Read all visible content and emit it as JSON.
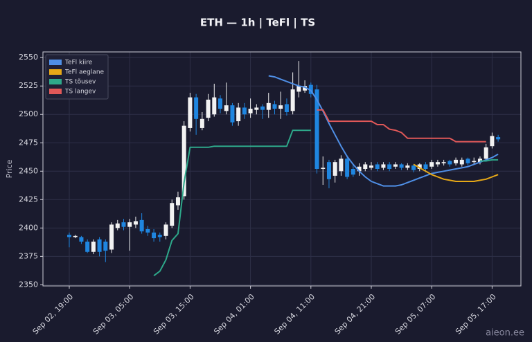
{
  "chart_data": {
    "type": "candlestick",
    "title": "ETH — 1h  |  TeFl  |  TS",
    "y_label": "Price",
    "watermark": "aieon.ee",
    "categories": [
      "Sep 02, 19:00",
      null,
      null,
      null,
      null,
      null,
      null,
      null,
      null,
      null,
      "Sep 03, 05:00",
      null,
      null,
      null,
      null,
      null,
      null,
      null,
      null,
      null,
      "Sep 03, 15:00",
      null,
      null,
      null,
      null,
      null,
      null,
      null,
      null,
      null,
      "Sep 04, 01:00",
      null,
      null,
      null,
      null,
      null,
      null,
      null,
      null,
      null,
      "Sep 04, 11:00",
      null,
      null,
      null,
      null,
      null,
      null,
      null,
      null,
      null,
      "Sep 04, 21:00",
      null,
      null,
      null,
      null,
      null,
      null,
      null,
      null,
      null,
      "Sep 05, 07:00",
      null,
      null,
      null,
      null,
      null,
      null,
      null,
      null,
      null,
      "Sep 05, 17:00",
      null
    ],
    "open": [
      2394,
      2392,
      2392,
      2388,
      2379,
      2390,
      2388,
      2381,
      2400,
      2405,
      2401,
      2403,
      2407,
      2399,
      2396,
      2394,
      2393,
      2402,
      2420,
      2428,
      2488,
      2515,
      2488,
      2497,
      2500,
      2514,
      2503,
      2508,
      2494,
      2506,
      2501,
      2504,
      2507,
      2504,
      2509,
      2505,
      2509,
      2503,
      2520,
      2521,
      2526,
      2522,
      2452,
      2458,
      2446,
      2450,
      2461,
      2452,
      2450,
      2452,
      2453,
      2456,
      2453,
      2456,
      2454,
      2456,
      2453,
      2455,
      2452,
      2456,
      2454,
      2456,
      2457,
      2459,
      2457,
      2456,
      2461,
      2458,
      2458,
      2461,
      2472,
      2480
    ],
    "high": [
      2396,
      2394,
      2393,
      2390,
      2390,
      2392,
      2390,
      2405,
      2407,
      2408,
      2408,
      2410,
      2413,
      2402,
      2399,
      2396,
      2405,
      2425,
      2432,
      2494,
      2519,
      2518,
      2502,
      2518,
      2527,
      2517,
      2528,
      2510,
      2510,
      2510,
      2514,
      2509,
      2509,
      2519,
      2512,
      2520,
      2514,
      2537,
      2547,
      2530,
      2528,
      2526,
      2463,
      2460,
      2460,
      2464,
      2464,
      2455,
      2457,
      2458,
      2458,
      2458,
      2458,
      2458,
      2458,
      2457,
      2457,
      2456,
      2457,
      2458,
      2460,
      2460,
      2460,
      2460,
      2462,
      2462,
      2462,
      2462,
      2463,
      2474,
      2484,
      2482
    ],
    "low": [
      2383,
      2391,
      2386,
      2378,
      2377,
      2375,
      2370,
      2378,
      2398,
      2398,
      2380,
      2400,
      2395,
      2393,
      2388,
      2388,
      2390,
      2400,
      2416,
      2425,
      2485,
      2482,
      2486,
      2494,
      2498,
      2501,
      2500,
      2490,
      2490,
      2496,
      2497,
      2500,
      2496,
      2497,
      2500,
      2496,
      2499,
      2500,
      2515,
      2519,
      2515,
      2448,
      2438,
      2435,
      2440,
      2446,
      2443,
      2445,
      2446,
      2450,
      2451,
      2450,
      2451,
      2450,
      2452,
      2451,
      2451,
      2449,
      2450,
      2449,
      2452,
      2454,
      2455,
      2454,
      2455,
      2454,
      2455,
      2456,
      2456,
      2459,
      2470,
      2476
    ],
    "close": [
      2392,
      2393,
      2388,
      2379,
      2388,
      2379,
      2380,
      2403,
      2404,
      2401,
      2405,
      2406,
      2397,
      2396,
      2391,
      2392,
      2403,
      2422,
      2427,
      2490,
      2515,
      2496,
      2496,
      2513,
      2515,
      2505,
      2508,
      2493,
      2506,
      2500,
      2505,
      2506,
      2504,
      2510,
      2505,
      2508,
      2502,
      2522,
      2525,
      2525,
      2518,
      2452,
      2453,
      2443,
      2458,
      2461,
      2445,
      2447,
      2454,
      2456,
      2455,
      2452,
      2456,
      2452,
      2456,
      2453,
      2455,
      2451,
      2456,
      2452,
      2458,
      2458,
      2458,
      2456,
      2460,
      2460,
      2457,
      2459,
      2461,
      2471,
      2481,
      2478
    ],
    "up_color": "#f2f2f2",
    "down_color": "#1f86e0",
    "series": [
      {
        "name": "TeFl kiire",
        "color": "#4f8fe6",
        "values": [
          null,
          null,
          null,
          null,
          null,
          null,
          null,
          null,
          null,
          null,
          null,
          null,
          null,
          null,
          null,
          null,
          null,
          null,
          null,
          null,
          null,
          null,
          null,
          null,
          null,
          null,
          null,
          null,
          null,
          null,
          null,
          null,
          null,
          2534,
          2533,
          2531,
          2529,
          2527,
          2525,
          2524,
          2521,
          2513,
          2503,
          2492,
          2482,
          2472,
          2463,
          2456,
          2450,
          2445,
          2441,
          2439,
          2437,
          2437,
          2437,
          2438,
          2440,
          2442,
          2444,
          2446,
          2448,
          2449,
          2450,
          2451,
          2452,
          2453,
          2454,
          2456,
          2458,
          2460,
          2462,
          2465
        ]
      },
      {
        "name": "TeFl aeglane",
        "color": "#e6a817",
        "values": [
          null,
          null,
          null,
          null,
          null,
          null,
          null,
          null,
          null,
          null,
          null,
          null,
          null,
          null,
          null,
          null,
          null,
          null,
          null,
          null,
          null,
          null,
          null,
          null,
          null,
          null,
          null,
          null,
          null,
          null,
          null,
          null,
          null,
          null,
          null,
          null,
          null,
          null,
          null,
          null,
          null,
          null,
          null,
          null,
          null,
          null,
          null,
          null,
          null,
          null,
          null,
          null,
          null,
          null,
          null,
          null,
          null,
          2456,
          2453,
          2450,
          2447,
          2445,
          2443,
          2442,
          2441,
          2441,
          2441,
          2441,
          2442,
          2443,
          2445,
          2447
        ]
      },
      {
        "name": "TS tõusev",
        "color": "#2ea88a",
        "values": [
          null,
          null,
          null,
          null,
          null,
          null,
          null,
          null,
          null,
          null,
          null,
          null,
          null,
          null,
          2358,
          2362,
          2372,
          2389,
          2395,
          2440,
          2471,
          2471,
          2471,
          2471,
          2472,
          2472,
          2472,
          2472,
          2472,
          2472,
          2472,
          2472,
          2472,
          2472,
          2472,
          2472,
          2472,
          2486,
          2486,
          2486,
          2486,
          null,
          null,
          null,
          null,
          null,
          null,
          null,
          null,
          null,
          null,
          null,
          null,
          null,
          null,
          null,
          null,
          null,
          null,
          null,
          null,
          null,
          null,
          null,
          null,
          null,
          null,
          null,
          2459,
          2459,
          2460,
          2460
        ]
      },
      {
        "name": "TS langev",
        "color": "#e05858",
        "values": [
          null,
          null,
          null,
          null,
          null,
          null,
          null,
          null,
          null,
          null,
          null,
          null,
          null,
          null,
          null,
          null,
          null,
          null,
          null,
          null,
          null,
          null,
          null,
          null,
          null,
          null,
          null,
          null,
          null,
          null,
          null,
          null,
          null,
          null,
          null,
          null,
          null,
          null,
          null,
          null,
          null,
          2504,
          2504,
          2494,
          2494,
          2494,
          2494,
          2494,
          2494,
          2494,
          2494,
          2491,
          2491,
          2487,
          2486,
          2484,
          2479,
          2479,
          2479,
          2479,
          2479,
          2479,
          2479,
          2479,
          2476,
          2476,
          2476,
          2476,
          2476,
          2476,
          null,
          null
        ]
      }
    ],
    "ylim": [
      2349,
      2555
    ],
    "yticks": [
      2350,
      2375,
      2400,
      2425,
      2450,
      2475,
      2500,
      2525,
      2550
    ],
    "grid": true,
    "legend": "upper left"
  }
}
